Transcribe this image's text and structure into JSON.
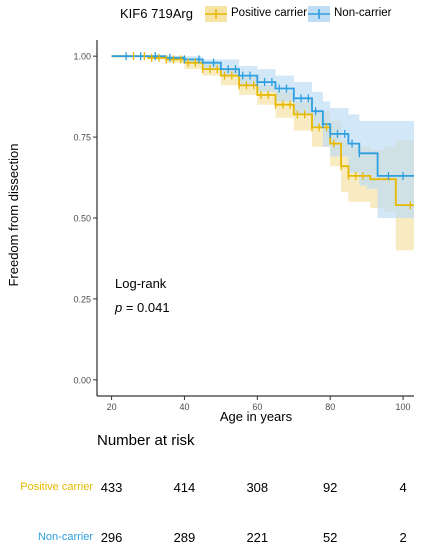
{
  "colors": {
    "positive_carrier": "#E7B800",
    "non_carrier": "#2E9FDF",
    "positive_band": "#F6E3A6",
    "non_band": "#BFDDF4"
  },
  "legend": {
    "title": "KIF6 719Arg",
    "items": [
      {
        "label": "Positive carrier",
        "color": "#E7B800"
      },
      {
        "label": "Non-carrier",
        "color": "#2E9FDF"
      }
    ]
  },
  "annotation": {
    "line1": "Log-rank",
    "p_symbol": "p",
    "p_rest": " = 0.041"
  },
  "risk_table": {
    "title": "Number at risk",
    "groups": [
      {
        "name": "Positive carrier",
        "color": "#E7B800",
        "values": [
          "433",
          "414",
          "308",
          "92",
          "4"
        ]
      },
      {
        "name": "Non-carrier",
        "color": "#2E9FDF",
        "values": [
          "296",
          "289",
          "221",
          "52",
          "2"
        ]
      }
    ]
  },
  "chart_data": {
    "type": "line",
    "title": "",
    "xlabel": "Age in years",
    "ylabel": "Freedom from dissection",
    "xlim": [
      16,
      103
    ],
    "ylim": [
      -0.05,
      1.05
    ],
    "x_ticks": [
      20,
      40,
      60,
      80,
      100
    ],
    "y_ticks": [
      0.0,
      0.25,
      0.5,
      0.75,
      1.0
    ],
    "y_tick_labels": [
      "0.00",
      "0.25",
      "0.50",
      "0.75",
      "1.00"
    ],
    "series": [
      {
        "name": "Positive carrier",
        "color": "#E7B800",
        "x": [
          20,
          30,
          35,
          40,
          45,
          50,
          55,
          60,
          65,
          70,
          75,
          80,
          83,
          85,
          88,
          91,
          95,
          98,
          103
        ],
        "y": [
          1.0,
          0.995,
          0.99,
          0.98,
          0.96,
          0.94,
          0.91,
          0.88,
          0.85,
          0.82,
          0.78,
          0.73,
          0.66,
          0.63,
          0.63,
          0.62,
          0.62,
          0.54,
          0.54
        ],
        "lower": [
          1.0,
          0.99,
          0.98,
          0.96,
          0.94,
          0.91,
          0.88,
          0.85,
          0.81,
          0.77,
          0.72,
          0.66,
          0.58,
          0.55,
          0.55,
          0.53,
          0.52,
          0.4,
          0.4
        ],
        "upper": [
          1.0,
          1.0,
          1.0,
          0.99,
          0.98,
          0.96,
          0.94,
          0.91,
          0.89,
          0.86,
          0.83,
          0.8,
          0.74,
          0.72,
          0.72,
          0.71,
          0.72,
          0.74,
          0.74
        ]
      },
      {
        "name": "Non-carrier",
        "color": "#2E9FDF",
        "x": [
          20,
          35,
          40,
          45,
          50,
          55,
          60,
          65,
          70,
          75,
          78,
          80,
          85,
          88,
          90,
          93,
          97,
          100,
          103
        ],
        "y": [
          1.0,
          0.995,
          0.99,
          0.98,
          0.96,
          0.94,
          0.92,
          0.9,
          0.87,
          0.83,
          0.79,
          0.76,
          0.73,
          0.7,
          0.7,
          0.63,
          0.63,
          0.63,
          0.63
        ],
        "lower": [
          1.0,
          0.99,
          0.98,
          0.96,
          0.94,
          0.91,
          0.89,
          0.86,
          0.82,
          0.78,
          0.72,
          0.69,
          0.64,
          0.6,
          0.59,
          0.5,
          0.5,
          0.5,
          0.5
        ],
        "upper": [
          1.0,
          1.0,
          1.0,
          0.99,
          0.99,
          0.97,
          0.96,
          0.94,
          0.92,
          0.89,
          0.86,
          0.84,
          0.82,
          0.8,
          0.8,
          0.8,
          0.8,
          0.8,
          0.8
        ]
      }
    ],
    "censor_ticks": [
      {
        "series": "Positive carrier",
        "x": [
          26,
          29,
          31,
          33,
          35,
          37,
          39,
          41,
          43,
          45,
          47,
          49,
          51,
          53,
          55,
          57,
          59,
          61,
          63,
          65,
          67,
          69,
          71,
          73,
          75,
          77,
          79,
          81,
          83,
          85,
          87,
          89,
          102
        ]
      },
      {
        "series": "Non-carrier",
        "x": [
          24,
          28,
          32,
          36,
          40,
          44,
          48,
          52,
          54,
          56,
          58,
          60,
          62,
          64,
          66,
          68,
          70,
          72,
          74,
          76,
          78,
          80,
          82,
          84,
          86,
          88,
          96,
          100
        ]
      }
    ],
    "risk_x": [
      20,
      40,
      60,
      80,
      100
    ],
    "grid": false
  }
}
